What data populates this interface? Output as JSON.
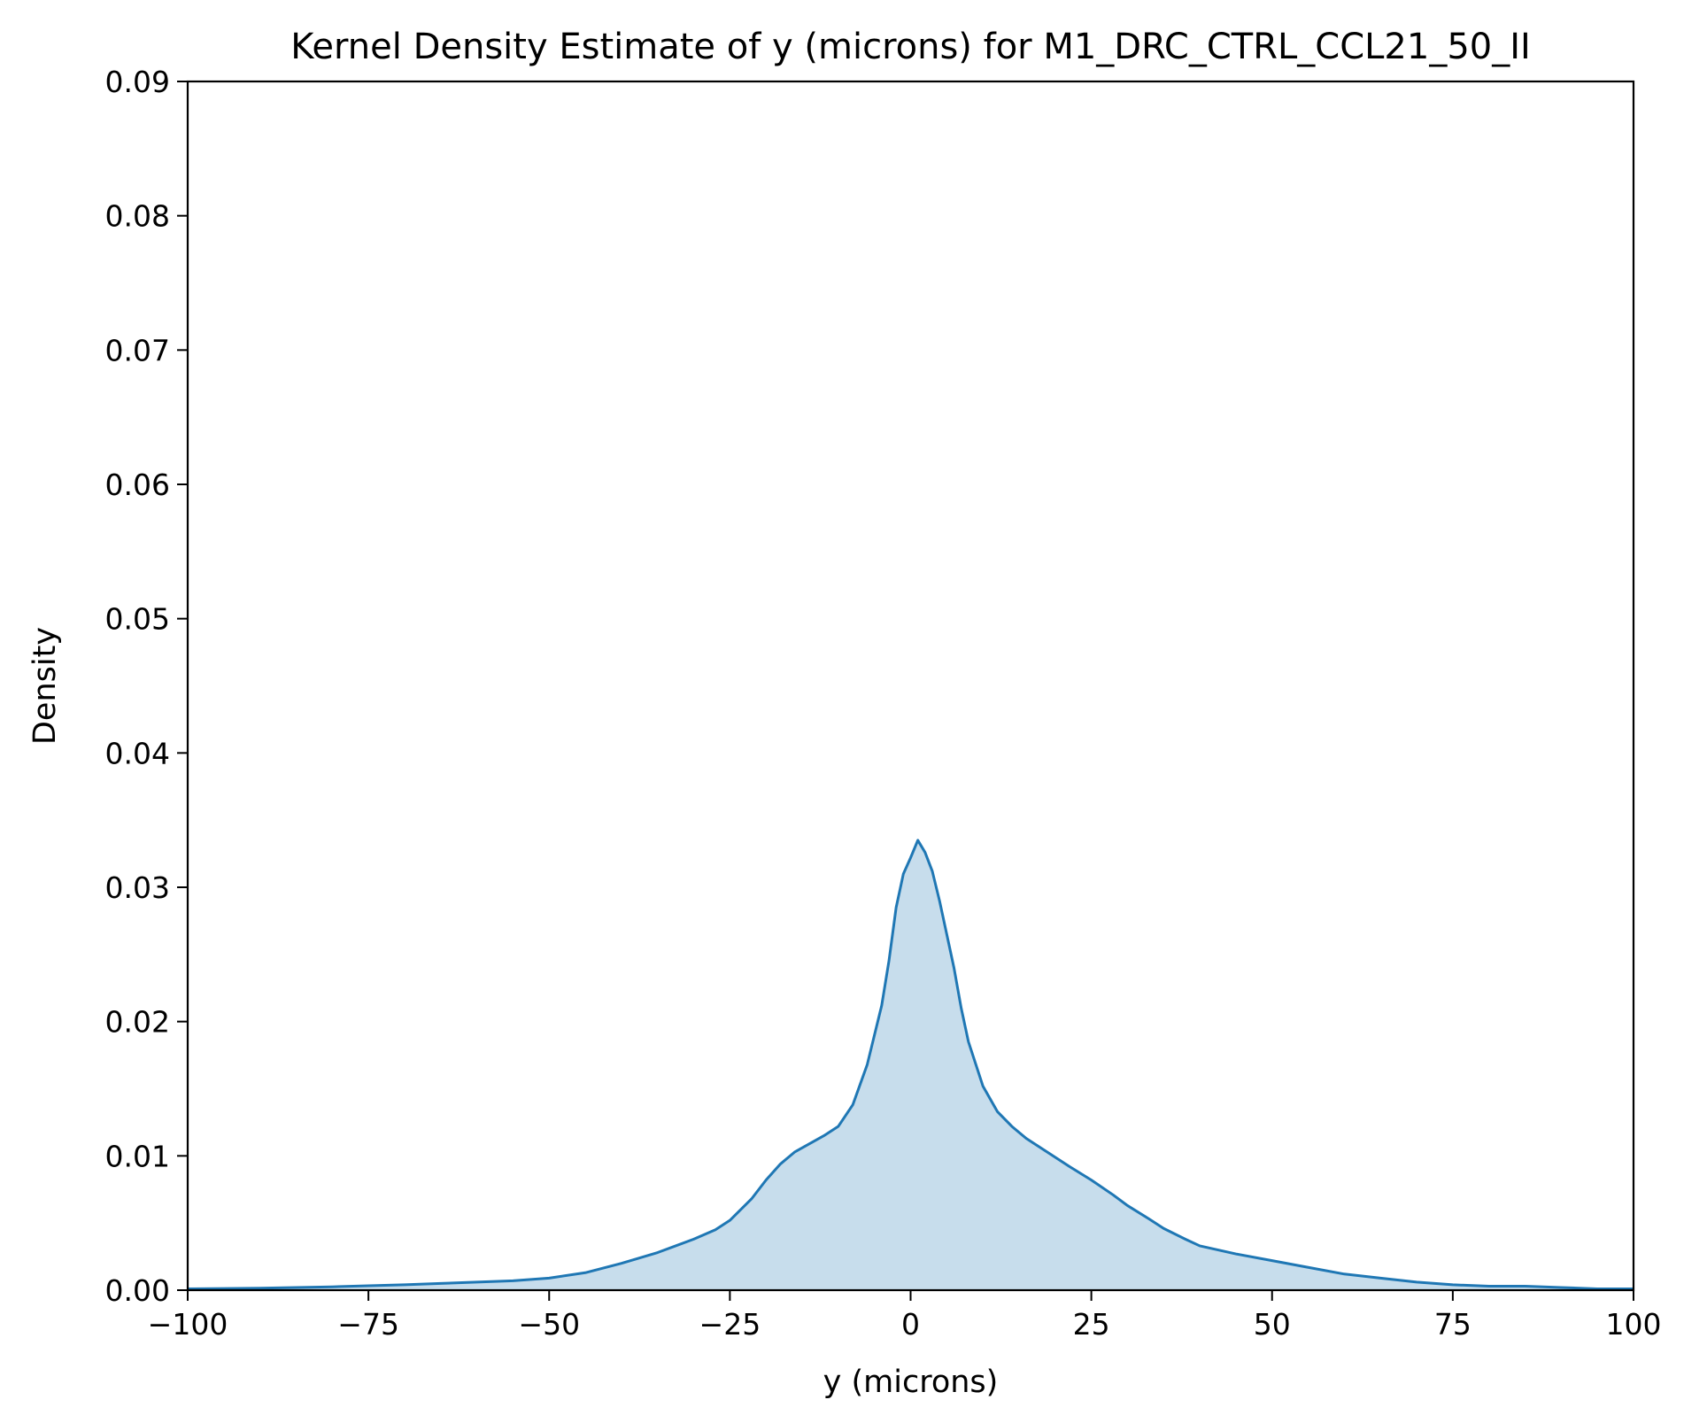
{
  "chart_data": {
    "type": "area",
    "title": "Kernel Density Estimate of y (microns) for M1_DRC_CTRL_CCL21_50_II",
    "xlabel": "y (microns)",
    "ylabel": "Density",
    "xlim": [
      -100,
      100
    ],
    "ylim": [
      0,
      0.09
    ],
    "x_ticks": [
      -100,
      -75,
      -50,
      -25,
      0,
      25,
      50,
      75,
      100
    ],
    "x_tick_labels": [
      "−100",
      "−75",
      "−50",
      "−25",
      "0",
      "25",
      "50",
      "75",
      "100"
    ],
    "y_ticks": [
      0,
      0.01,
      0.02,
      0.03,
      0.04,
      0.05,
      0.06,
      0.07,
      0.08,
      0.09
    ],
    "y_tick_labels": [
      "0.00",
      "0.01",
      "0.02",
      "0.03",
      "0.04",
      "0.05",
      "0.06",
      "0.07",
      "0.08",
      "0.09"
    ],
    "grid": false,
    "line_color": "#1f77b4",
    "fill_color": "#1f77b4",
    "fill_opacity": 0.25,
    "series": [
      {
        "x": [
          -100,
          -90,
          -80,
          -70,
          -65,
          -60,
          -55,
          -50,
          -45,
          -40,
          -35,
          -30,
          -27,
          -25,
          -22,
          -20,
          -18,
          -16,
          -14,
          -12,
          -10,
          -8,
          -6,
          -4,
          -3,
          -2,
          -1,
          0,
          1,
          2,
          3,
          4,
          5,
          6,
          7,
          8,
          10,
          12,
          14,
          16,
          18,
          20,
          22,
          25,
          28,
          30,
          33,
          35,
          38,
          40,
          45,
          50,
          55,
          60,
          65,
          70,
          75,
          80,
          85,
          90,
          95,
          100
        ],
        "y": [
          0.0001,
          0.00015,
          0.00025,
          0.0004,
          0.0005,
          0.0006,
          0.0007,
          0.0009,
          0.0013,
          0.002,
          0.0028,
          0.0038,
          0.0045,
          0.0052,
          0.0068,
          0.0082,
          0.0094,
          0.0103,
          0.0109,
          0.0115,
          0.0122,
          0.0138,
          0.0168,
          0.0212,
          0.0245,
          0.0285,
          0.031,
          0.0322,
          0.0335,
          0.0326,
          0.0312,
          0.029,
          0.0265,
          0.024,
          0.021,
          0.0185,
          0.0152,
          0.0133,
          0.0122,
          0.0113,
          0.0106,
          0.0099,
          0.0092,
          0.0082,
          0.0071,
          0.0063,
          0.0053,
          0.0046,
          0.0038,
          0.0033,
          0.0027,
          0.0022,
          0.0017,
          0.0012,
          0.0009,
          0.0006,
          0.0004,
          0.0003,
          0.0003,
          0.0002,
          0.0001,
          0.0001
        ]
      }
    ]
  }
}
